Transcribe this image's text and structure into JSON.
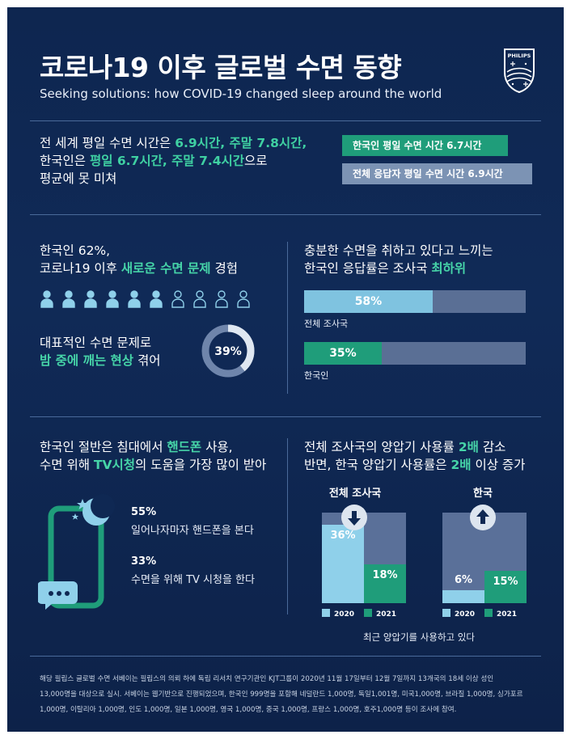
{
  "header": {
    "title": "코로나19 이후 글로벌 수면 동향",
    "subtitle": "Seeking solutions: how COVID-19 changed sleep around the world",
    "logo_text": "PHILIPS"
  },
  "section1": {
    "line1_a": "전 세계 평일 수면 시간은 ",
    "line1_b": "6.9시간, 주말 7.8시간,",
    "line2_a": "한국인은 ",
    "line2_b": "평일 6.7시간, 주말 7.4시간",
    "line2_c": "으로",
    "line3": "평균에 못 미쳐",
    "pill_korea": "한국인 평일 수면 시간  6.7시간",
    "pill_all": "전체 응답자 평일 수면 시간 6.9시간"
  },
  "section2_left": {
    "line1": "한국인 62%,",
    "line2_a": "코로나19 이후 ",
    "line2_b": "새로운 수면 문제",
    "line2_c": " 경험",
    "people_total": 10,
    "people_filled": 6,
    "line3": "대표적인 수면 문제로",
    "line4_a": "밤 중에 깨는 현상",
    "line4_b": " 겪어",
    "donut_label": "39%",
    "donut_value": 39
  },
  "section2_right": {
    "line1": "충분한 수면을 취하고 있다고 느끼는",
    "line2_a": "한국인 응답률은 조사국 ",
    "line2_b": "최하위",
    "bars": [
      {
        "label": "전체 조사국",
        "value": 58,
        "value_label": "58%",
        "color": "#7fc3e0"
      },
      {
        "label": "한국인",
        "value": 35,
        "value_label": "35%",
        "color": "#1f9d7a"
      }
    ]
  },
  "section3_left": {
    "line1_a": "한국인 절반은 침대에서 ",
    "line1_b": "핸드폰",
    "line1_c": " 사용,",
    "line2_a": "수면 위해 ",
    "line2_b": "TV시청",
    "line2_c": "의 도움을 가장 많이 받아",
    "stat1_num": "55%",
    "stat1_text": "일어나자마자 핸드폰을 본다",
    "stat2_num": "33%",
    "stat2_text": "수면을 위해 TV 시청을 한다"
  },
  "section3_right": {
    "line1_a": "전체 조사국의 양압기 사용률 ",
    "line1_b": "2배",
    "line1_c": " 감소",
    "line2_a": "반면, 한국 양압기 사용률은 ",
    "line2_b": "2배",
    "line2_c": " 이상 증가",
    "groups": [
      {
        "label": "전체 조사국",
        "arrow": "down",
        "v2020": 36,
        "v2020_label": "36%",
        "v2021": 18,
        "v2021_label": "18%"
      },
      {
        "label": "한국",
        "arrow": "up",
        "v2020": 6,
        "v2020_label": "6%",
        "v2021": 15,
        "v2021_label": "15%"
      }
    ],
    "legend_2020": "2020",
    "legend_2021": "2021",
    "caption": "최근 양압기를 사용하고 있다",
    "color_2020": "#8fd0ea",
    "color_2021": "#1f9d7a"
  },
  "footer": {
    "line1": "해당 필립스 글로벌 수면 서베이는 필립스의 의뢰 하에 독립 리서치 연구기관인 KJT그룹이 2020년 11월 17일부터 12월 7일까지 13개국의 18세 이상 성인",
    "line2": "13,000명을 대상으로 실시. 서베이는 웹기반으로 진행되었으며, 한국인 999명을 포함해 네덜란드 1,000명, 독일1,001명, 미국1,000명, 브라질 1,000명, 싱가포르",
    "line3": "1,000명, 이탈리아 1,000명, 인도 1,000명, 일본 1,000명, 영국 1,000명, 중국 1,000명, 프랑스 1,000명, 호주1,000명 등이 조사에 참여."
  }
}
